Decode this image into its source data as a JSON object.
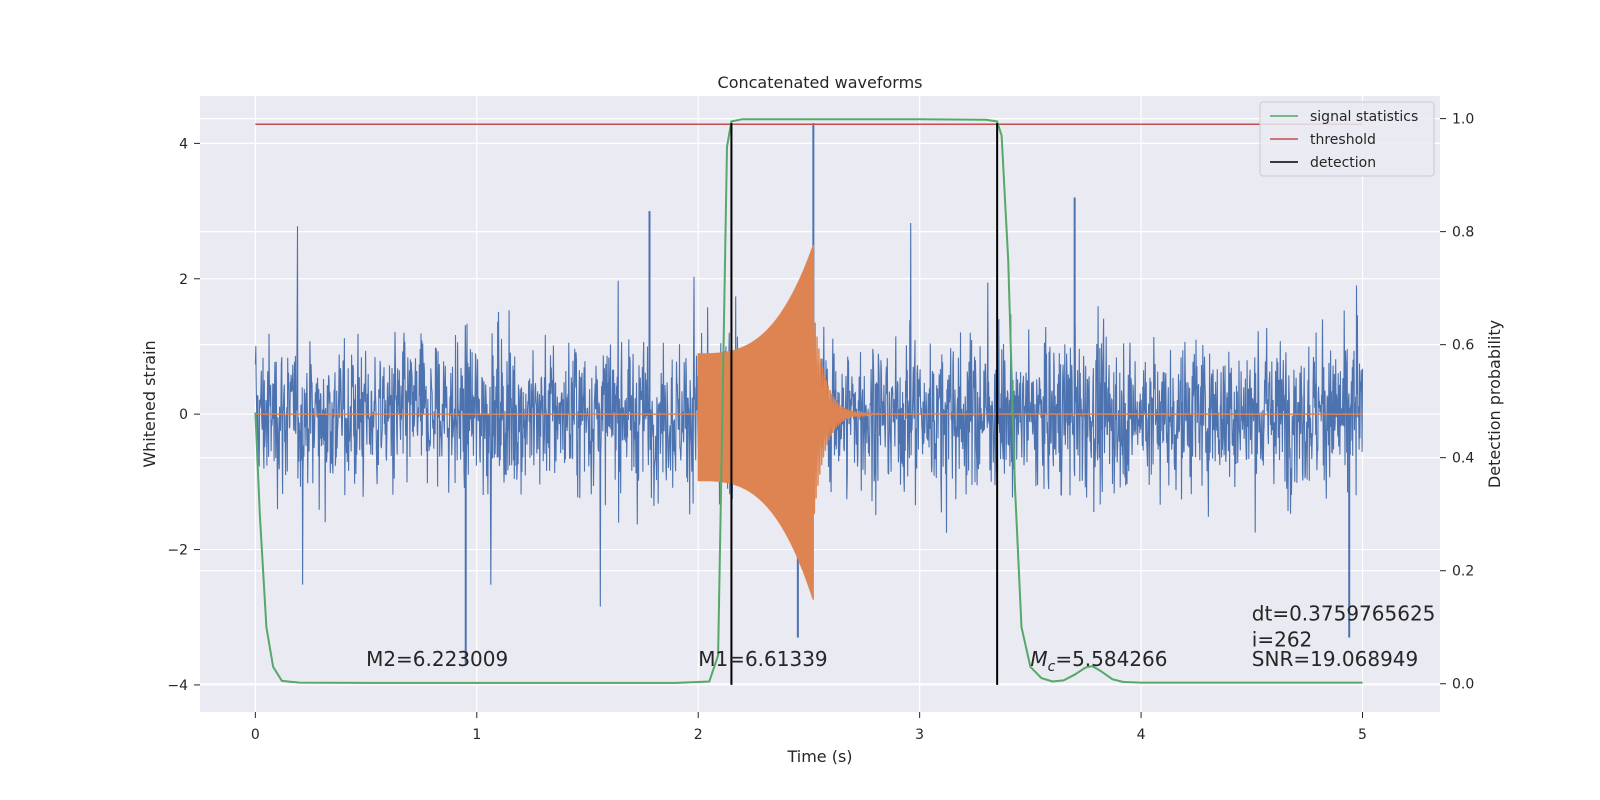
{
  "chart_data": {
    "type": "line",
    "title": "Concatenated waveforms",
    "xlabel": "Time (s)",
    "ylabel": "Whitened strain",
    "y2label": "Detection probability",
    "xlim": [
      -0.25,
      5.35
    ],
    "ylim": [
      -4.4,
      4.7
    ],
    "y2lim": [
      -0.05,
      1.04
    ],
    "x_ticks": [
      0,
      1,
      2,
      3,
      4,
      5
    ],
    "x_tick_labels": [
      "0",
      "1",
      "2",
      "3",
      "4",
      "5"
    ],
    "y_ticks": [
      4,
      2,
      0,
      -2,
      -4
    ],
    "y_tick_labels": [
      "4",
      "2",
      "0",
      "−2",
      "−4"
    ],
    "y2_ticks": [
      1.0,
      0.8,
      0.6,
      0.4,
      0.2,
      0.0
    ],
    "y2_tick_labels": [
      "1.0",
      "0.8",
      "0.6",
      "0.4",
      "0.2",
      "0.0"
    ],
    "grid": true,
    "legend_position": "top-right",
    "legend": [
      "signal statistics",
      "threshold",
      "detection"
    ],
    "series": [
      {
        "name": "strain (noise + signal)",
        "color": "#4c72b0",
        "axis": "left",
        "description_x_range": [
          0,
          5
        ],
        "typical_amplitude": 1.0,
        "peak_max": 4.3,
        "peak_min": -3.8
      },
      {
        "name": "injected waveform",
        "color": "#dd8452",
        "axis": "left",
        "x_start": 2.0,
        "x_merger": 2.52,
        "amplitude_start": 0.9,
        "amplitude_merger": 2.5,
        "min_at_merger": -3.0
      },
      {
        "name": "signal statistics",
        "color": "#55a868",
        "axis": "right",
        "x": [
          0.0,
          0.02,
          0.05,
          0.08,
          0.12,
          0.2,
          0.5,
          1.0,
          1.5,
          1.9,
          2.05,
          2.09,
          2.11,
          2.13,
          2.15,
          2.2,
          2.5,
          3.0,
          3.3,
          3.35,
          3.37,
          3.4,
          3.43,
          3.46,
          3.5,
          3.55,
          3.6,
          3.65,
          3.7,
          3.75,
          3.78,
          3.82,
          3.87,
          3.92,
          4.0,
          4.5,
          5.0
        ],
        "y": [
          0.48,
          0.3,
          0.1,
          0.03,
          0.005,
          0.002,
          0.0015,
          0.0015,
          0.0015,
          0.0015,
          0.004,
          0.05,
          0.5,
          0.95,
          0.995,
          0.999,
          0.999,
          0.999,
          0.998,
          0.995,
          0.97,
          0.75,
          0.35,
          0.1,
          0.03,
          0.01,
          0.004,
          0.006,
          0.016,
          0.029,
          0.031,
          0.022,
          0.008,
          0.003,
          0.002,
          0.002,
          0.002
        ]
      },
      {
        "name": "threshold",
        "color": "#c44e52",
        "axis": "right",
        "x": [
          0,
          5
        ],
        "y": [
          0.99,
          0.99
        ]
      },
      {
        "name": "detection",
        "color": "#000000",
        "axis": "left",
        "vlines": [
          2.15,
          3.35
        ],
        "y_range": [
          -4.0,
          4.3
        ]
      }
    ],
    "annotations": [
      {
        "text": "M2=6.223009",
        "x": 0.5,
        "y": -3.72
      },
      {
        "text": "M1=6.61339",
        "x": 2.0,
        "y": -3.72
      },
      {
        "text": "=5.584266",
        "prefix": "M",
        "subscript": "c",
        "x": 3.5,
        "y": -3.72
      },
      {
        "text": "SNR=19.068949",
        "x": 4.5,
        "y": -3.72
      },
      {
        "text": "dt=0.3759765625",
        "x": 4.5,
        "y": -3.05
      },
      {
        "text": " i=262",
        "x": 4.5,
        "y": -3.43
      }
    ]
  }
}
